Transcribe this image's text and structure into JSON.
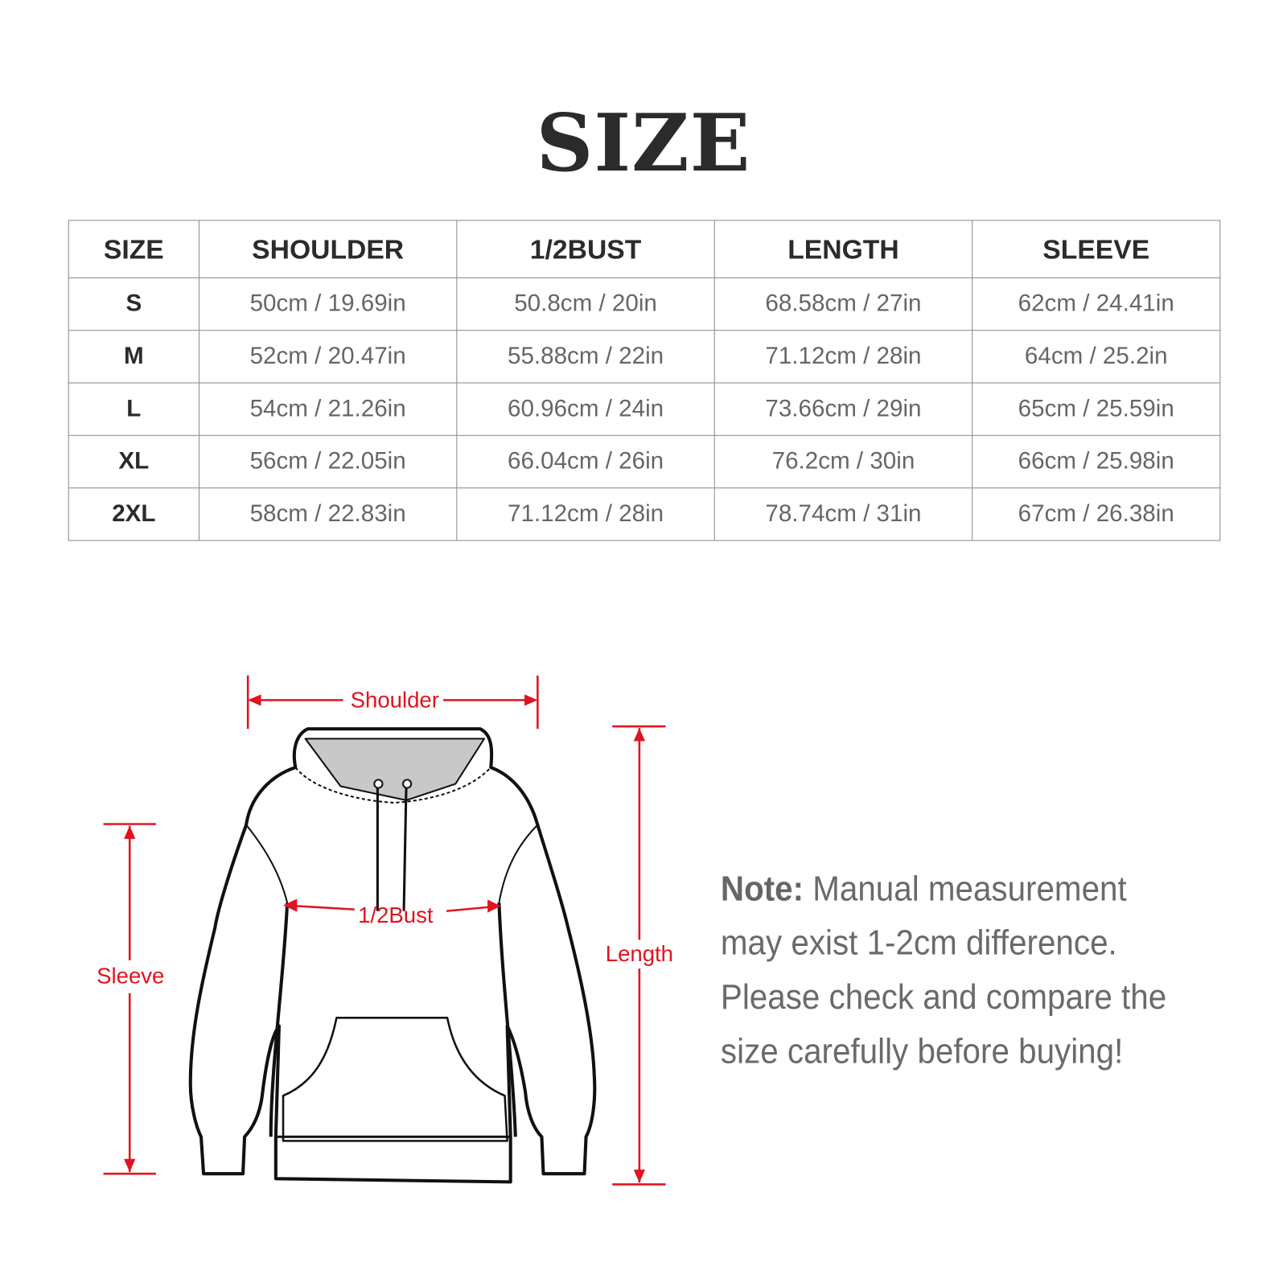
{
  "title": "SIZE",
  "table": {
    "headers": [
      "SIZE",
      "SHOULDER",
      "1/2BUST",
      "LENGTH",
      "SLEEVE"
    ],
    "rows": [
      [
        "S",
        "50cm / 19.69in",
        "50.8cm / 20in",
        "68.58cm / 27in",
        "62cm / 24.41in"
      ],
      [
        "M",
        "52cm / 20.47in",
        "55.88cm / 22in",
        "71.12cm / 28in",
        "64cm / 25.2in"
      ],
      [
        "L",
        "54cm / 21.26in",
        "60.96cm / 24in",
        "73.66cm / 29in",
        "65cm / 25.59in"
      ],
      [
        "XL",
        "56cm / 22.05in",
        "66.04cm / 26in",
        "76.2cm / 30in",
        "66cm / 25.98in"
      ],
      [
        "2XL",
        "58cm / 22.83in",
        "71.12cm / 28in",
        "78.74cm / 31in",
        "67cm / 26.38in"
      ]
    ]
  },
  "diagram": {
    "shoulder": "Shoulder",
    "bust": "1/2Bust",
    "sleeve": "Sleeve",
    "length": "Length",
    "accent_color": "#e0131f"
  },
  "note": {
    "label": "Note:",
    "text": " Manual measurement may exist 1-2cm difference. Please check and compare the size carefully before buying!"
  }
}
